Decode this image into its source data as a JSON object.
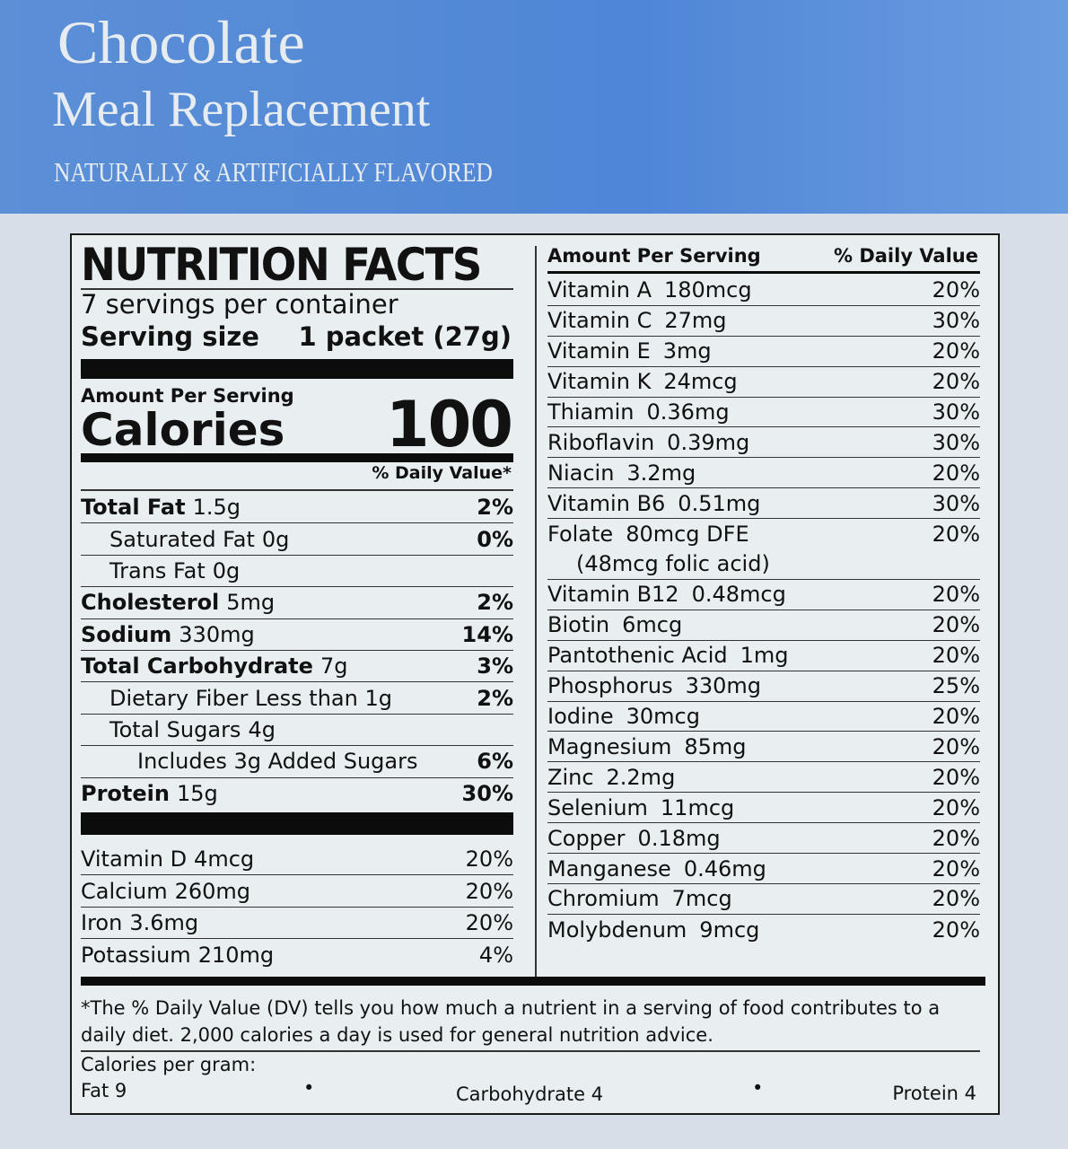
{
  "header": {
    "title": "Chocolate",
    "subtitle": "Meal Replacement",
    "flavor": "NATURALLY & ARTIFICIALLY FLAVORED"
  },
  "label": {
    "heading": "NUTRITION FACTS",
    "servings": "7 servings per container",
    "serving_size_label": "Serving size",
    "serving_size": "1 packet (27g)",
    "amount_per_serving": "Amount Per Serving",
    "calories_label": "Calories",
    "calories": 100,
    "daily_value_header": "% Daily Value*",
    "nutrients": [
      {
        "name": "Total Fat",
        "amount": "1.5g",
        "dv": "2%"
      },
      {
        "name": "Saturated Fat",
        "amount": "0g",
        "dv": "0%"
      },
      {
        "name": "Trans Fat",
        "amount": "0g"
      },
      {
        "name": "Cholesterol",
        "amount": "5mg",
        "dv": "2%"
      },
      {
        "name": "Sodium",
        "amount": "330mg",
        "dv": "14%"
      },
      {
        "name": "Total Carbohydrate",
        "amount": "7g",
        "dv": "3%"
      },
      {
        "name": "Dietary Fiber Less than 1g",
        "dv": "2%"
      },
      {
        "name": "Total Sugars",
        "amount": "4g"
      },
      {
        "name": "Includes 3g Added Sugars",
        "dv": "6%"
      },
      {
        "name": "Protein",
        "amount": "15g",
        "dv": "30%"
      }
    ],
    "minerals": [
      {
        "name": "Vitamin D",
        "amount": "4mcg",
        "dv": "20%"
      },
      {
        "name": "Calcium",
        "amount": "260mg",
        "dv": "20%"
      },
      {
        "name": "Iron",
        "amount": "3.6mg",
        "dv": "20%"
      },
      {
        "name": "Potassium",
        "amount": "210mg",
        "dv": "4%"
      }
    ],
    "vitamins_header": {
      "amount": "Amount Per Serving",
      "dv": "% Daily Value"
    },
    "vitamins": [
      {
        "name": "Vitamin A",
        "amount": "180mcg",
        "dv": "20%"
      },
      {
        "name": "Vitamin C",
        "amount": "27mg",
        "dv": "30%"
      },
      {
        "name": "Vitamin E",
        "amount": "3mg",
        "dv": "20%"
      },
      {
        "name": "Vitamin K",
        "amount": "24mcg",
        "dv": "20%"
      },
      {
        "name": "Thiamin",
        "amount": "0.36mg",
        "dv": "30%"
      },
      {
        "name": "Riboflavin",
        "amount": "0.39mg",
        "dv": "30%"
      },
      {
        "name": "Niacin",
        "amount": "3.2mg",
        "dv": "20%"
      },
      {
        "name": "Vitamin B6",
        "amount": "0.51mg",
        "dv": "30%"
      },
      {
        "name": "Folate",
        "amount": "80mcg DFE",
        "dv": "20%",
        "note": "(48mcg folic acid)"
      },
      {
        "name": "Vitamin B12",
        "amount": "0.48mcg",
        "dv": "20%"
      },
      {
        "name": "Biotin",
        "amount": "6mcg",
        "dv": "20%"
      },
      {
        "name": "Pantothenic Acid",
        "amount": "1mg",
        "dv": "20%"
      },
      {
        "name": "Phosphorus",
        "amount": "330mg",
        "dv": "25%"
      },
      {
        "name": "Iodine",
        "amount": "30mcg",
        "dv": "20%"
      },
      {
        "name": "Magnesium",
        "amount": "85mg",
        "dv": "20%"
      },
      {
        "name": "Zinc",
        "amount": "2.2mg",
        "dv": "20%"
      },
      {
        "name": "Selenium",
        "amount": "11mcg",
        "dv": "20%"
      },
      {
        "name": "Copper",
        "amount": "0.18mg",
        "dv": "20%"
      },
      {
        "name": "Manganese",
        "amount": "0.46mg",
        "dv": "20%"
      },
      {
        "name": "Chromium",
        "amount": "7mcg",
        "dv": "20%"
      },
      {
        "name": "Molybdenum",
        "amount": "9mcg",
        "dv": "20%"
      }
    ],
    "footnote": "*The % Daily Value (DV) tells you how much a nutrient in a serving of food contributes to a daily diet. 2,000 calories a day is used for general nutrition advice.",
    "calories_per_gram": {
      "label": "Calories per gram:",
      "fat": "Fat 9",
      "carbohydrate": "Carbohydrate 4",
      "protein": "Protein 4"
    }
  }
}
